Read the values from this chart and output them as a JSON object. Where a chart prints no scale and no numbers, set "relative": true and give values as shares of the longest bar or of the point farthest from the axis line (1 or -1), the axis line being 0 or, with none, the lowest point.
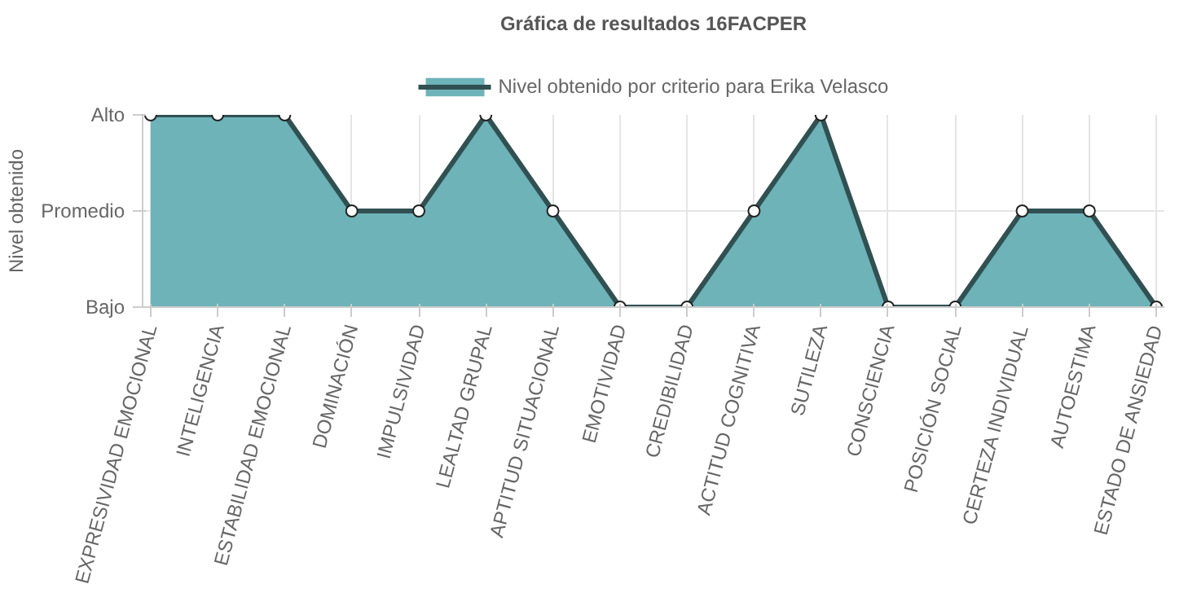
{
  "chart_data": {
    "type": "area",
    "title": "Gráfica de resultados 16FACPER",
    "ylabel": "Nivel obtenido",
    "categories": [
      "EXPRESIVIDAD EMOCIONAL",
      "INTELIGENCIA",
      "ESTABILIDAD EMOCIONAL",
      "DOMINACIÓN",
      "IMPULSIVIDAD",
      "LEALTAD GRUPAL",
      "APTITUD SITUACIONAL",
      "EMOTIVIDAD",
      "CREDIBILIDAD",
      "ACTITUD COGNITIVA",
      "SUTILEZA",
      "CONSCIENCIA",
      "POSICIÓN SOCIAL",
      "CERTEZA INDIVIDUAL",
      "AUTOESTIMA",
      "ESTADO DE ANSIEDAD"
    ],
    "y_categories": [
      "Alto",
      "Promedio",
      "Bajo"
    ],
    "relative": true,
    "series": [
      {
        "name": "Nivel obtenido por criterio para Erika Velasco",
        "color": "#6db3b8",
        "values": [
          1,
          1,
          1,
          0.5,
          0.5,
          1,
          0.5,
          0,
          0,
          0.5,
          1,
          0,
          0,
          0.5,
          0.5,
          0
        ]
      }
    ],
    "grid": true,
    "legend": "top",
    "marker": "circle"
  }
}
